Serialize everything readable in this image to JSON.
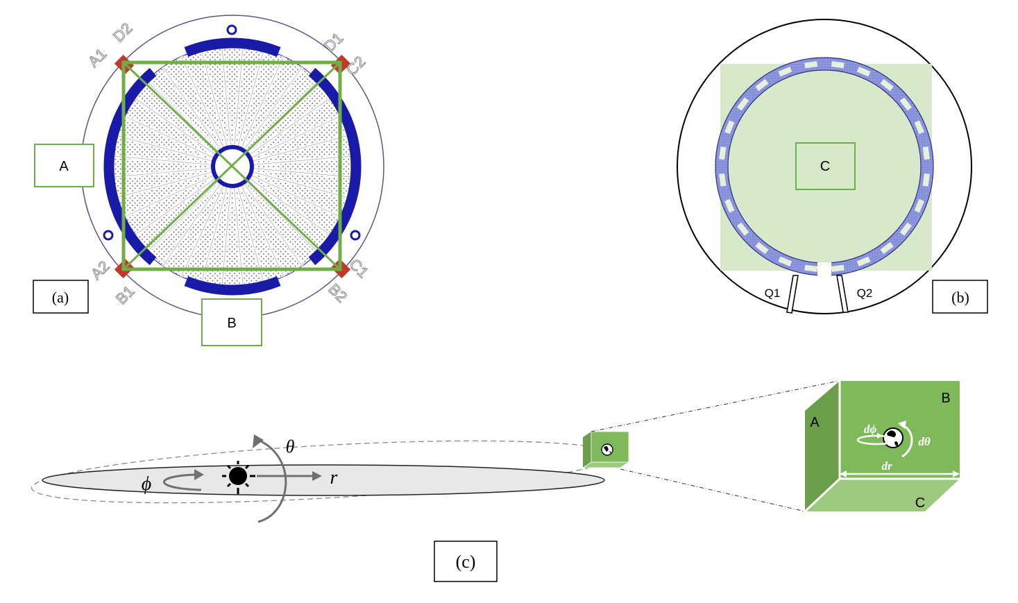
{
  "panel_a": {
    "caption": "(a)",
    "box_a": "A",
    "box_b": "B",
    "labels": {
      "d2": "D2",
      "d1": "D1",
      "a1": "A1",
      "c2": "C2",
      "a2": "A2",
      "c1": "C1",
      "b1": "B1",
      "b2": "B2"
    }
  },
  "panel_b": {
    "caption": "(b)",
    "box_c": "C",
    "q1": "Q1",
    "q2": "Q2"
  },
  "panel_c": {
    "caption": "(c)",
    "theta": "θ",
    "phi": "ϕ",
    "r": "r",
    "cube": {
      "a": "A",
      "b": "B",
      "c": "C",
      "dphi": "dϕ",
      "dtheta": "dθ",
      "dr": "dr"
    }
  },
  "colors": {
    "green": "#70ad47",
    "cube_front": "#7fba5a",
    "cube_side": "#6a9e4a",
    "cube_bottom": "#9cc97d",
    "electrode_blue": "#1a1aa8",
    "corner_red": "#c0392b",
    "ring_periwinkle": "#8e97de",
    "plane_fill": "#e8e8e8"
  }
}
